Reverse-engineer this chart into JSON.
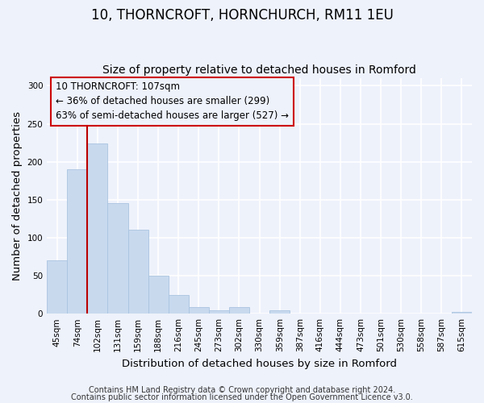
{
  "title": "10, THORNCROFT, HORNCHURCH, RM11 1EU",
  "subtitle": "Size of property relative to detached houses in Romford",
  "xlabel": "Distribution of detached houses by size in Romford",
  "ylabel": "Number of detached properties",
  "bin_labels": [
    "45sqm",
    "74sqm",
    "102sqm",
    "131sqm",
    "159sqm",
    "188sqm",
    "216sqm",
    "245sqm",
    "273sqm",
    "302sqm",
    "330sqm",
    "359sqm",
    "387sqm",
    "416sqm",
    "444sqm",
    "473sqm",
    "501sqm",
    "530sqm",
    "558sqm",
    "587sqm",
    "615sqm"
  ],
  "bar_heights": [
    70,
    190,
    224,
    146,
    111,
    50,
    25,
    9,
    4,
    9,
    0,
    4,
    0,
    0,
    0,
    0,
    0,
    0,
    0,
    0,
    2
  ],
  "bar_color": "#c8d9ee",
  "bar_edgecolor": "#aac4e0",
  "vline_x_index": 2,
  "vline_color": "#bb0000",
  "annotation_box_text": "10 THORNCROFT: 107sqm\n← 36% of detached houses are smaller (299)\n63% of semi-detached houses are larger (527) →",
  "annotation_box_color": "#cc0000",
  "ylim": [
    0,
    310
  ],
  "yticks": [
    0,
    50,
    100,
    150,
    200,
    250,
    300
  ],
  "footer_line1": "Contains HM Land Registry data © Crown copyright and database right 2024.",
  "footer_line2": "Contains public sector information licensed under the Open Government Licence v3.0.",
  "background_color": "#eef2fb",
  "grid_color": "#ffffff",
  "title_fontsize": 12,
  "subtitle_fontsize": 10,
  "axis_label_fontsize": 9.5,
  "tick_fontsize": 7.5,
  "annotation_fontsize": 8.5,
  "footer_fontsize": 7
}
